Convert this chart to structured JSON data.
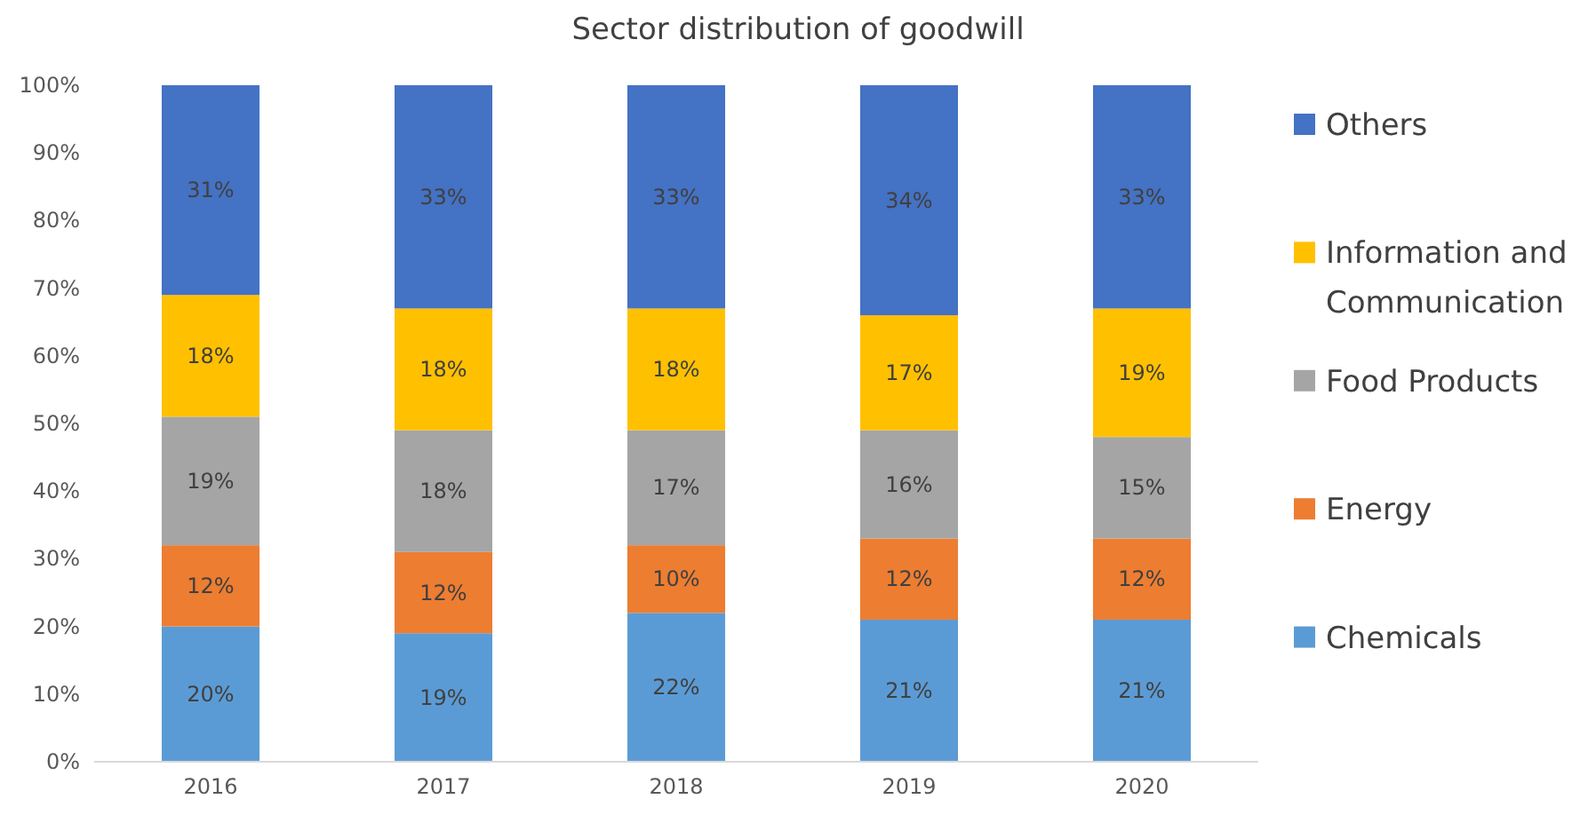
{
  "chart_data": {
    "type": "bar",
    "title": "Sector distribution of goodwill",
    "stacked": true,
    "legend": "right",
    "grid": false,
    "categories": [
      "2016",
      "2017",
      "2018",
      "2019",
      "2020"
    ],
    "ylim": [
      0,
      100
    ],
    "yticks": [
      {
        "value": 0,
        "label": "0%"
      },
      {
        "value": 10,
        "label": "10%"
      },
      {
        "value": 20,
        "label": "20%"
      },
      {
        "value": 30,
        "label": "30%"
      },
      {
        "value": 40,
        "label": "40%"
      },
      {
        "value": 50,
        "label": "50%"
      },
      {
        "value": 60,
        "label": "60%"
      },
      {
        "value": 70,
        "label": "70%"
      },
      {
        "value": 80,
        "label": "80%"
      },
      {
        "value": 90,
        "label": "90%"
      },
      {
        "value": 100,
        "label": "100%"
      }
    ],
    "series": [
      {
        "name": "Chemicals",
        "color": "#5b9bd5",
        "values": [
          20,
          19,
          22,
          21,
          21
        ],
        "value_labels": [
          "20%",
          "19%",
          "22%",
          "21%",
          "21%"
        ]
      },
      {
        "name": "Energy",
        "color": "#ed7d31",
        "values": [
          12,
          12,
          10,
          12,
          12
        ],
        "value_labels": [
          "12%",
          "12%",
          "10%",
          "12%",
          "12%"
        ]
      },
      {
        "name": "Food Products",
        "color": "#a5a5a5",
        "values": [
          19,
          18,
          17,
          16,
          15
        ],
        "value_labels": [
          "19%",
          "18%",
          "17%",
          "16%",
          "15%"
        ]
      },
      {
        "name": "Information and Communication",
        "color": "#ffc000",
        "values": [
          18,
          18,
          18,
          17,
          19
        ],
        "value_labels": [
          "18%",
          "18%",
          "18%",
          "17%",
          "19%"
        ]
      },
      {
        "name": "Others",
        "color": "#4472c4",
        "values": [
          31,
          33,
          33,
          34,
          33
        ],
        "value_labels": [
          "31%",
          "33%",
          "33%",
          "34%",
          "33%"
        ]
      }
    ]
  }
}
